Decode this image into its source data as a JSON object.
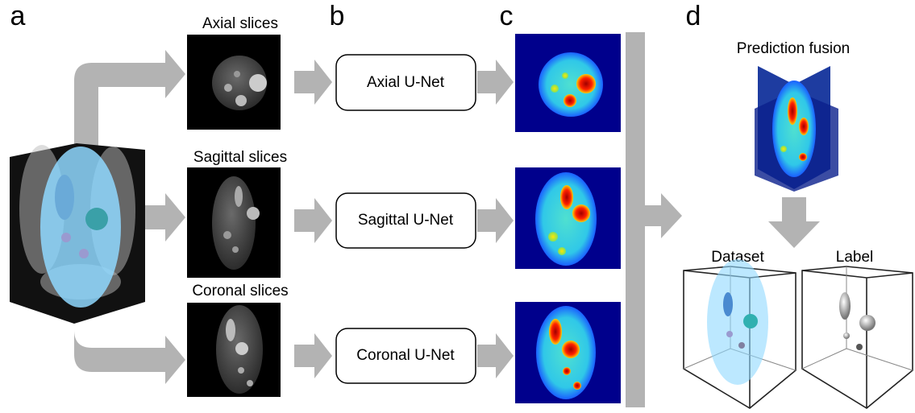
{
  "panels": [
    "a",
    "b",
    "c",
    "d"
  ],
  "slices": [
    "Axial slices",
    "Sagittal slices",
    "Coronal slices"
  ],
  "networks": [
    "Axial U-Net",
    "Sagittal U-Net",
    "Coronal U-Net"
  ],
  "fusion": {
    "title": "Prediction fusion"
  },
  "outputs": [
    "Dataset",
    "Label"
  ]
}
